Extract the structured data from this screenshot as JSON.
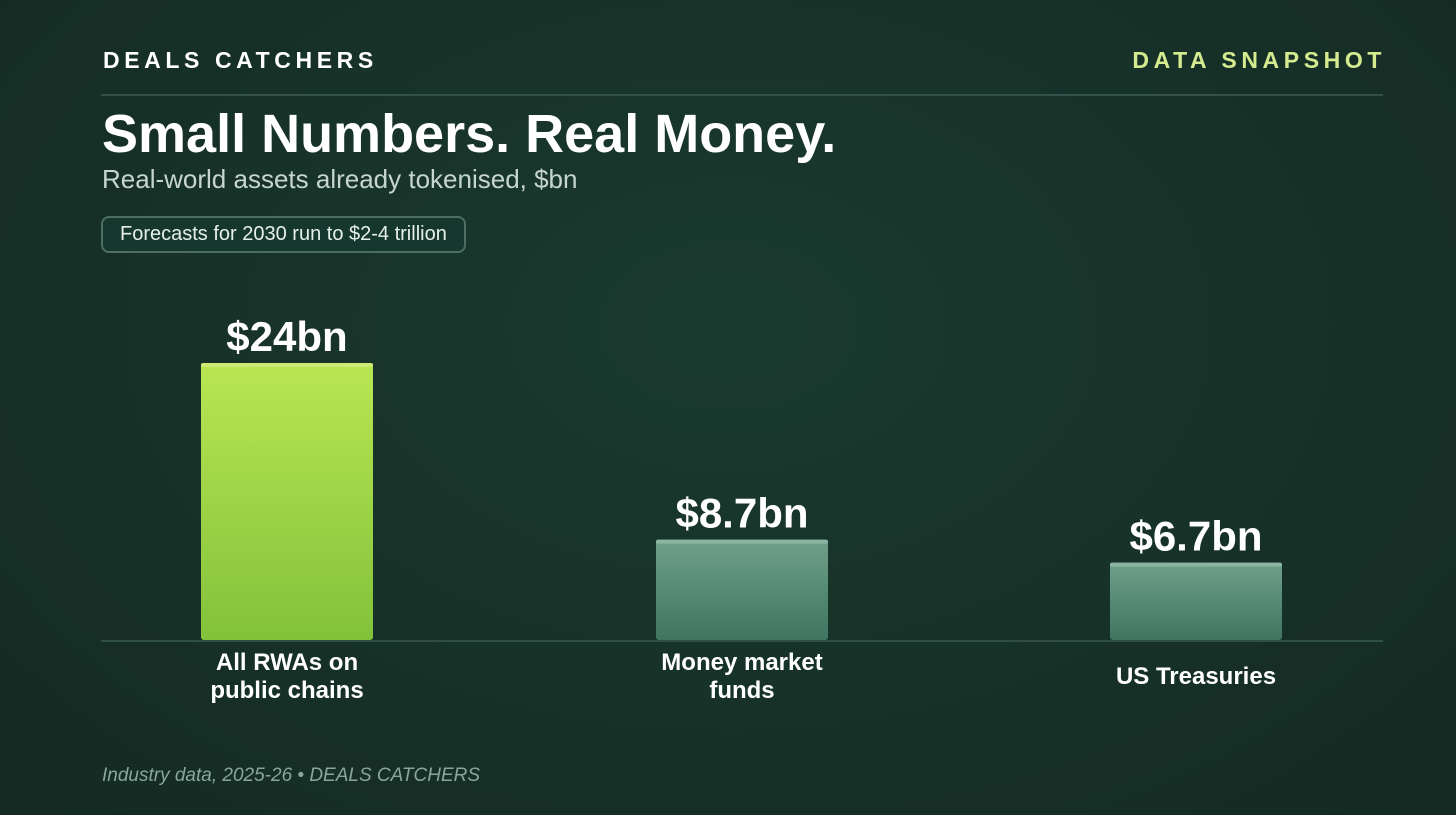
{
  "header": {
    "brand": "DEALS CATCHERS",
    "tag": "DATA SNAPSHOT"
  },
  "title": "Small Numbers. Real Money.",
  "subtitle": "Real-world assets already tokenised, $bn",
  "callout": "Forecasts for 2030 run to $2-4 trillion",
  "footer": "Industry data, 2025-26 • DEALS CATCHERS",
  "colors": {
    "highlight_bar": "#9ed84a",
    "secondary_bar": "#5a8c76",
    "brand_accent": "#d4ec8f",
    "background": "#17302a"
  },
  "chart_data": {
    "type": "bar",
    "title": "Small Numbers. Real Money.",
    "subtitle": "Real-world assets already tokenised, $bn",
    "categories": [
      "All RWAs on public chains",
      "Money market funds",
      "US Treasuries"
    ],
    "category_lines": [
      [
        "All RWAs on",
        "public chains"
      ],
      [
        "Money market",
        "funds"
      ],
      [
        "US Treasuries"
      ]
    ],
    "values": [
      24,
      8.7,
      6.7
    ],
    "value_labels": [
      "$24bn",
      "$8.7bn",
      "$6.7bn"
    ],
    "highlight_index": 0,
    "ylim": [
      0,
      24
    ],
    "grid": false,
    "xlabel": "",
    "ylabel": ""
  }
}
